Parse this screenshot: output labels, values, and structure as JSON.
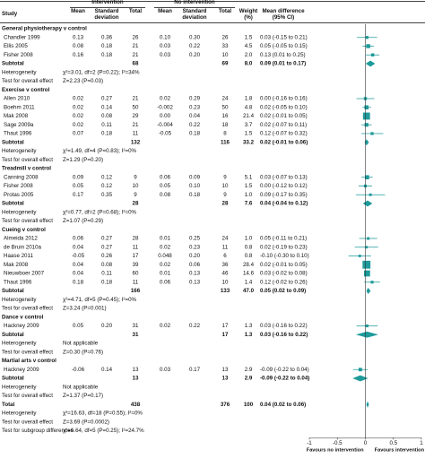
{
  "chart_data": {
    "type": "forest",
    "color": "#1f9a9a",
    "xlim": [
      -1,
      1
    ],
    "xticks": [
      -1,
      -0.5,
      0,
      0.5,
      1
    ],
    "xlabel_left": "Favours no intervention",
    "xlabel_right": "Favours intervention",
    "header": {
      "study": "Study",
      "intervention": "Intervention",
      "no_intervention": "No intervention",
      "mean": "Mean",
      "sd": "Standard deviation",
      "total": "Total",
      "mean_2": "Mean",
      "sd_2": "Standard deviation",
      "total_2": "Total",
      "weight": "Weight (%)",
      "md": "Mean difference (95% CI)"
    },
    "groups": [
      {
        "title": "General physiotherapy v control",
        "studies": [
          {
            "name": "Chandler 1999",
            "int": [
              "0.13",
              "0.36",
              "26"
            ],
            "ctrl": [
              "0.10",
              "0.30",
              "26"
            ],
            "weight": "1.5",
            "md_label": "0.03 (-0.15 to 0.21)",
            "md": 0.03,
            "ci": [
              -0.15,
              0.21
            ]
          },
          {
            "name": "Ellis 2005",
            "int": [
              "0.08",
              "0.18",
              "21"
            ],
            "ctrl": [
              "0.03",
              "0.22",
              "33"
            ],
            "weight": "4.5",
            "md_label": "0.05 (-0.05 to 0.15)",
            "md": 0.05,
            "ci": [
              -0.05,
              0.15
            ]
          },
          {
            "name": "Fisher 2008",
            "int": [
              "0.16",
              "0.18",
              "21"
            ],
            "ctrl": [
              "0.03",
              "0.20",
              "10"
            ],
            "weight": "2.0",
            "md_label": "0.13 (0.01 to 0.25)",
            "md": 0.13,
            "ci": [
              0.01,
              0.25
            ]
          }
        ],
        "subtotal": {
          "label": "Subtotal",
          "int_total": "68",
          "ctrl_total": "69",
          "weight": "8.0",
          "md_label": "0.09 (0.01 to 0.17)",
          "md": 0.09,
          "ci": [
            0.01,
            0.17
          ]
        },
        "heterogeneity": {
          "label": "Heterogeneity",
          "text": "χ²=3.01, df=2 (P=0.22); I²=34%"
        },
        "test": {
          "label": "Test for overall effect",
          "text": "Z=2.23 (P=0.03)"
        }
      },
      {
        "title": "Exercise v control",
        "studies": [
          {
            "name": "Allen 2010",
            "int": [
              "0.02",
              "0.27",
              "21"
            ],
            "ctrl": [
              "0.02",
              "0.29",
              "24"
            ],
            "weight": "1.8",
            "md_label": "0.00 (-0.16 to 0.16)",
            "md": 0.0,
            "ci": [
              -0.16,
              0.16
            ]
          },
          {
            "name": "Boehm 2011",
            "int": [
              "0.02",
              "0.14",
              "50"
            ],
            "ctrl": [
              "-0.002",
              "0.23",
              "50"
            ],
            "weight": "4.8",
            "md_label": "0.02 (-0.05 to 0.10)",
            "md": 0.02,
            "ci": [
              -0.05,
              0.1
            ]
          },
          {
            "name": "Mak 2008",
            "int": [
              "0.02",
              "0.08",
              "29"
            ],
            "ctrl": [
              "0.00",
              "0.04",
              "16"
            ],
            "weight": "21.4",
            "md_label": "0.02 (-0.01 to 0.05)",
            "md": 0.02,
            "ci": [
              -0.01,
              0.05
            ]
          },
          {
            "name": "Sage 2009a",
            "int": [
              "0.02",
              "0.11",
              "21"
            ],
            "ctrl": [
              "-0.004",
              "0.22",
              "18"
            ],
            "weight": "3.7",
            "md_label": "0.02 (-0.07 to 0.11)",
            "md": 0.02,
            "ci": [
              -0.07,
              0.11
            ]
          },
          {
            "name": "Thaut 1996",
            "int": [
              "0.07",
              "0.18",
              "11"
            ],
            "ctrl": [
              "-0.05",
              "0.18",
              "8"
            ],
            "weight": "1.5",
            "md_label": "0.12 (-0.07 to 0.32)",
            "md": 0.12,
            "ci": [
              -0.07,
              0.32
            ]
          }
        ],
        "subtotal": {
          "label": "Subtotal",
          "int_total": "132",
          "ctrl_total": "116",
          "weight": "33.2",
          "md_label": "0.02 (-0.01 to 0.06)",
          "md": 0.02,
          "ci": [
            -0.01,
            0.06
          ]
        },
        "heterogeneity": {
          "label": "Heterogeneity",
          "text": "χ²=1.49, df=4 (P=0.83); I²=0%"
        },
        "test": {
          "label": "Test for overall effect",
          "text": "Z=1.29 (P=0.20)"
        }
      },
      {
        "title": "Treadmill v control",
        "studies": [
          {
            "name": "Canning 2008",
            "int": [
              "0.09",
              "0.12",
              "9"
            ],
            "ctrl": [
              "0.06",
              "0.09",
              "9"
            ],
            "weight": "5.1",
            "md_label": "0.03 (-0.07 to 0.13)",
            "md": 0.03,
            "ci": [
              -0.07,
              0.13
            ]
          },
          {
            "name": "Fisher 2008",
            "int": [
              "0.05",
              "0.12",
              "10"
            ],
            "ctrl": [
              "0.05",
              "0.10",
              "10"
            ],
            "weight": "1.5",
            "md_label": "0.00 (-0.12 to 0.12)",
            "md": 0.0,
            "ci": [
              -0.12,
              0.12
            ]
          },
          {
            "name": "Protas 2005",
            "int": [
              "0.17",
              "0.35",
              "9"
            ],
            "ctrl": [
              "0.08",
              "0.18",
              "9"
            ],
            "weight": "1.0",
            "md_label": "0.09 (-0.17 to 0.35)",
            "md": 0.09,
            "ci": [
              -0.17,
              0.35
            ]
          }
        ],
        "subtotal": {
          "label": "Subtotal",
          "int_total": "28",
          "ctrl_total": "28",
          "weight": "7.6",
          "md_label": "0.04 (-0.04 to 0.12)",
          "md": 0.04,
          "ci": [
            -0.04,
            0.12
          ]
        },
        "heterogeneity": {
          "label": "Heterogeneity",
          "text": "χ²=0.77, df=2 (P=0.68); I²=0%"
        },
        "test": {
          "label": "Test for overall effect",
          "text": "Z=1.07 (P=0.29)"
        }
      },
      {
        "title": "Cueing v control",
        "studies": [
          {
            "name": "Almeida 2012",
            "int": [
              "0.06",
              "0.27",
              "28"
            ],
            "ctrl": [
              "0.01",
              "0.25",
              "24"
            ],
            "weight": "1.0",
            "md_label": "0.05 (-0.11 to 0.21)",
            "md": 0.05,
            "ci": [
              -0.11,
              0.21
            ]
          },
          {
            "name": "de Bruin 2010a",
            "int": [
              "0.04",
              "0.27",
              "11"
            ],
            "ctrl": [
              "0.02",
              "0.23",
              "11"
            ],
            "weight": "0.8",
            "md_label": "0.02 (-0.19 to 0.23)",
            "md": 0.02,
            "ci": [
              -0.19,
              0.23
            ]
          },
          {
            "name": "Haase 2011",
            "int": [
              "-0.05",
              "0.26",
              "17"
            ],
            "ctrl": [
              "0.048",
              "0.20",
              "6"
            ],
            "weight": "0.8",
            "md_label": "-0.10 (-0.30 to 0.10)",
            "md": -0.1,
            "ci": [
              -0.3,
              0.1
            ]
          },
          {
            "name": "Mak 2008",
            "int": [
              "0.04",
              "0.08",
              "39"
            ],
            "ctrl": [
              "0.02",
              "0.06",
              "36"
            ],
            "weight": "28.4",
            "md_label": "0.02 (-0.01 to 0.05)",
            "md": 0.02,
            "ci": [
              -0.01,
              0.05
            ]
          },
          {
            "name": "Nieuwboer 2007",
            "int": [
              "0.04",
              "0.11",
              "60"
            ],
            "ctrl": [
              "0.01",
              "0.13",
              "46"
            ],
            "weight": "14.6",
            "md_label": "0.03 (-0.02 to 0.08)",
            "md": 0.03,
            "ci": [
              -0.02,
              0.08
            ]
          },
          {
            "name": "Thaut 1996",
            "int": [
              "0.18",
              "0.18",
              "11"
            ],
            "ctrl": [
              "0.06",
              "0.13",
              "10"
            ],
            "weight": "1.4",
            "md_label": "0.12 (-0.02 to 0.26)",
            "md": 0.12,
            "ci": [
              -0.02,
              0.26
            ]
          }
        ],
        "subtotal": {
          "label": "Subtotal",
          "int_total": "166",
          "ctrl_total": "133",
          "weight": "47.0",
          "md_label": "0.05 (0.02 to 0.09)",
          "md": 0.05,
          "ci": [
            0.02,
            0.09
          ]
        },
        "heterogeneity": {
          "label": "Heterogeneity",
          "text": "χ²=4.71, df=5 (P=0.45); I²=0%"
        },
        "test": {
          "label": "Test for overall effect",
          "text": "Z=3.24 (P=0.001)"
        }
      },
      {
        "title": "Dance v control",
        "studies": [
          {
            "name": "Hackney 2009",
            "int": [
              "0.05",
              "0.20",
              "31"
            ],
            "ctrl": [
              "0.02",
              "0.22",
              "17"
            ],
            "weight": "1.3",
            "md_label": "0.03 (-0.16 to 0.22)",
            "md": 0.03,
            "ci": [
              -0.16,
              0.22
            ]
          }
        ],
        "subtotal": {
          "label": "Subtotal",
          "int_total": "31",
          "ctrl_total": "17",
          "weight": "1.3",
          "md_label": "0.03 (-0.16 to 0.22)",
          "md": 0.03,
          "ci": [
            -0.16,
            0.22
          ]
        },
        "heterogeneity": {
          "label": "Heterogeneity",
          "text": "Not applicable"
        },
        "test": {
          "label": "Test for overall effect",
          "text": "Z=0.30 (P=0.76)"
        }
      },
      {
        "title": "Martial arts v control",
        "studies": [
          {
            "name": "Hackney 2009",
            "int": [
              "-0.06",
              "0.14",
              "13"
            ],
            "ctrl": [
              "0.03",
              "0.17",
              "13"
            ],
            "weight": "2.9",
            "md_label": "-0.09 (-0.22 to 0.04)",
            "md": -0.09,
            "ci": [
              -0.22,
              0.04
            ]
          }
        ],
        "subtotal": {
          "label": "Subtotal",
          "int_total": "13",
          "ctrl_total": "13",
          "weight": "2.9",
          "md_label": "-0.09 (-0.22 to 0.04)",
          "md": -0.09,
          "ci": [
            -0.22,
            0.04
          ]
        },
        "heterogeneity": {
          "label": "Heterogeneity",
          "text": "Not applicable"
        },
        "test": {
          "label": "Test for overall effect",
          "text": "Z=1.37 (P=0.17)"
        }
      }
    ],
    "overall": {
      "label": "Total",
      "int_total": "438",
      "ctrl_total": "376",
      "weight": "100",
      "md_label": "0.04 (0.02 to 0.06)",
      "md": 0.04,
      "ci": [
        0.02,
        0.06
      ],
      "heterogeneity": {
        "label": "Heterogeneity",
        "text": "χ²=16.63, df=18 (P=0.55); I²=0%"
      },
      "test": {
        "label": "Test for overall effect",
        "text": "Z=3.69 (P=0.0002)"
      },
      "subgroup": {
        "label": "Test for subgroup differences",
        "text": "χ²=6.64, df=5 (P=0.25); I²=24.7%"
      }
    }
  }
}
